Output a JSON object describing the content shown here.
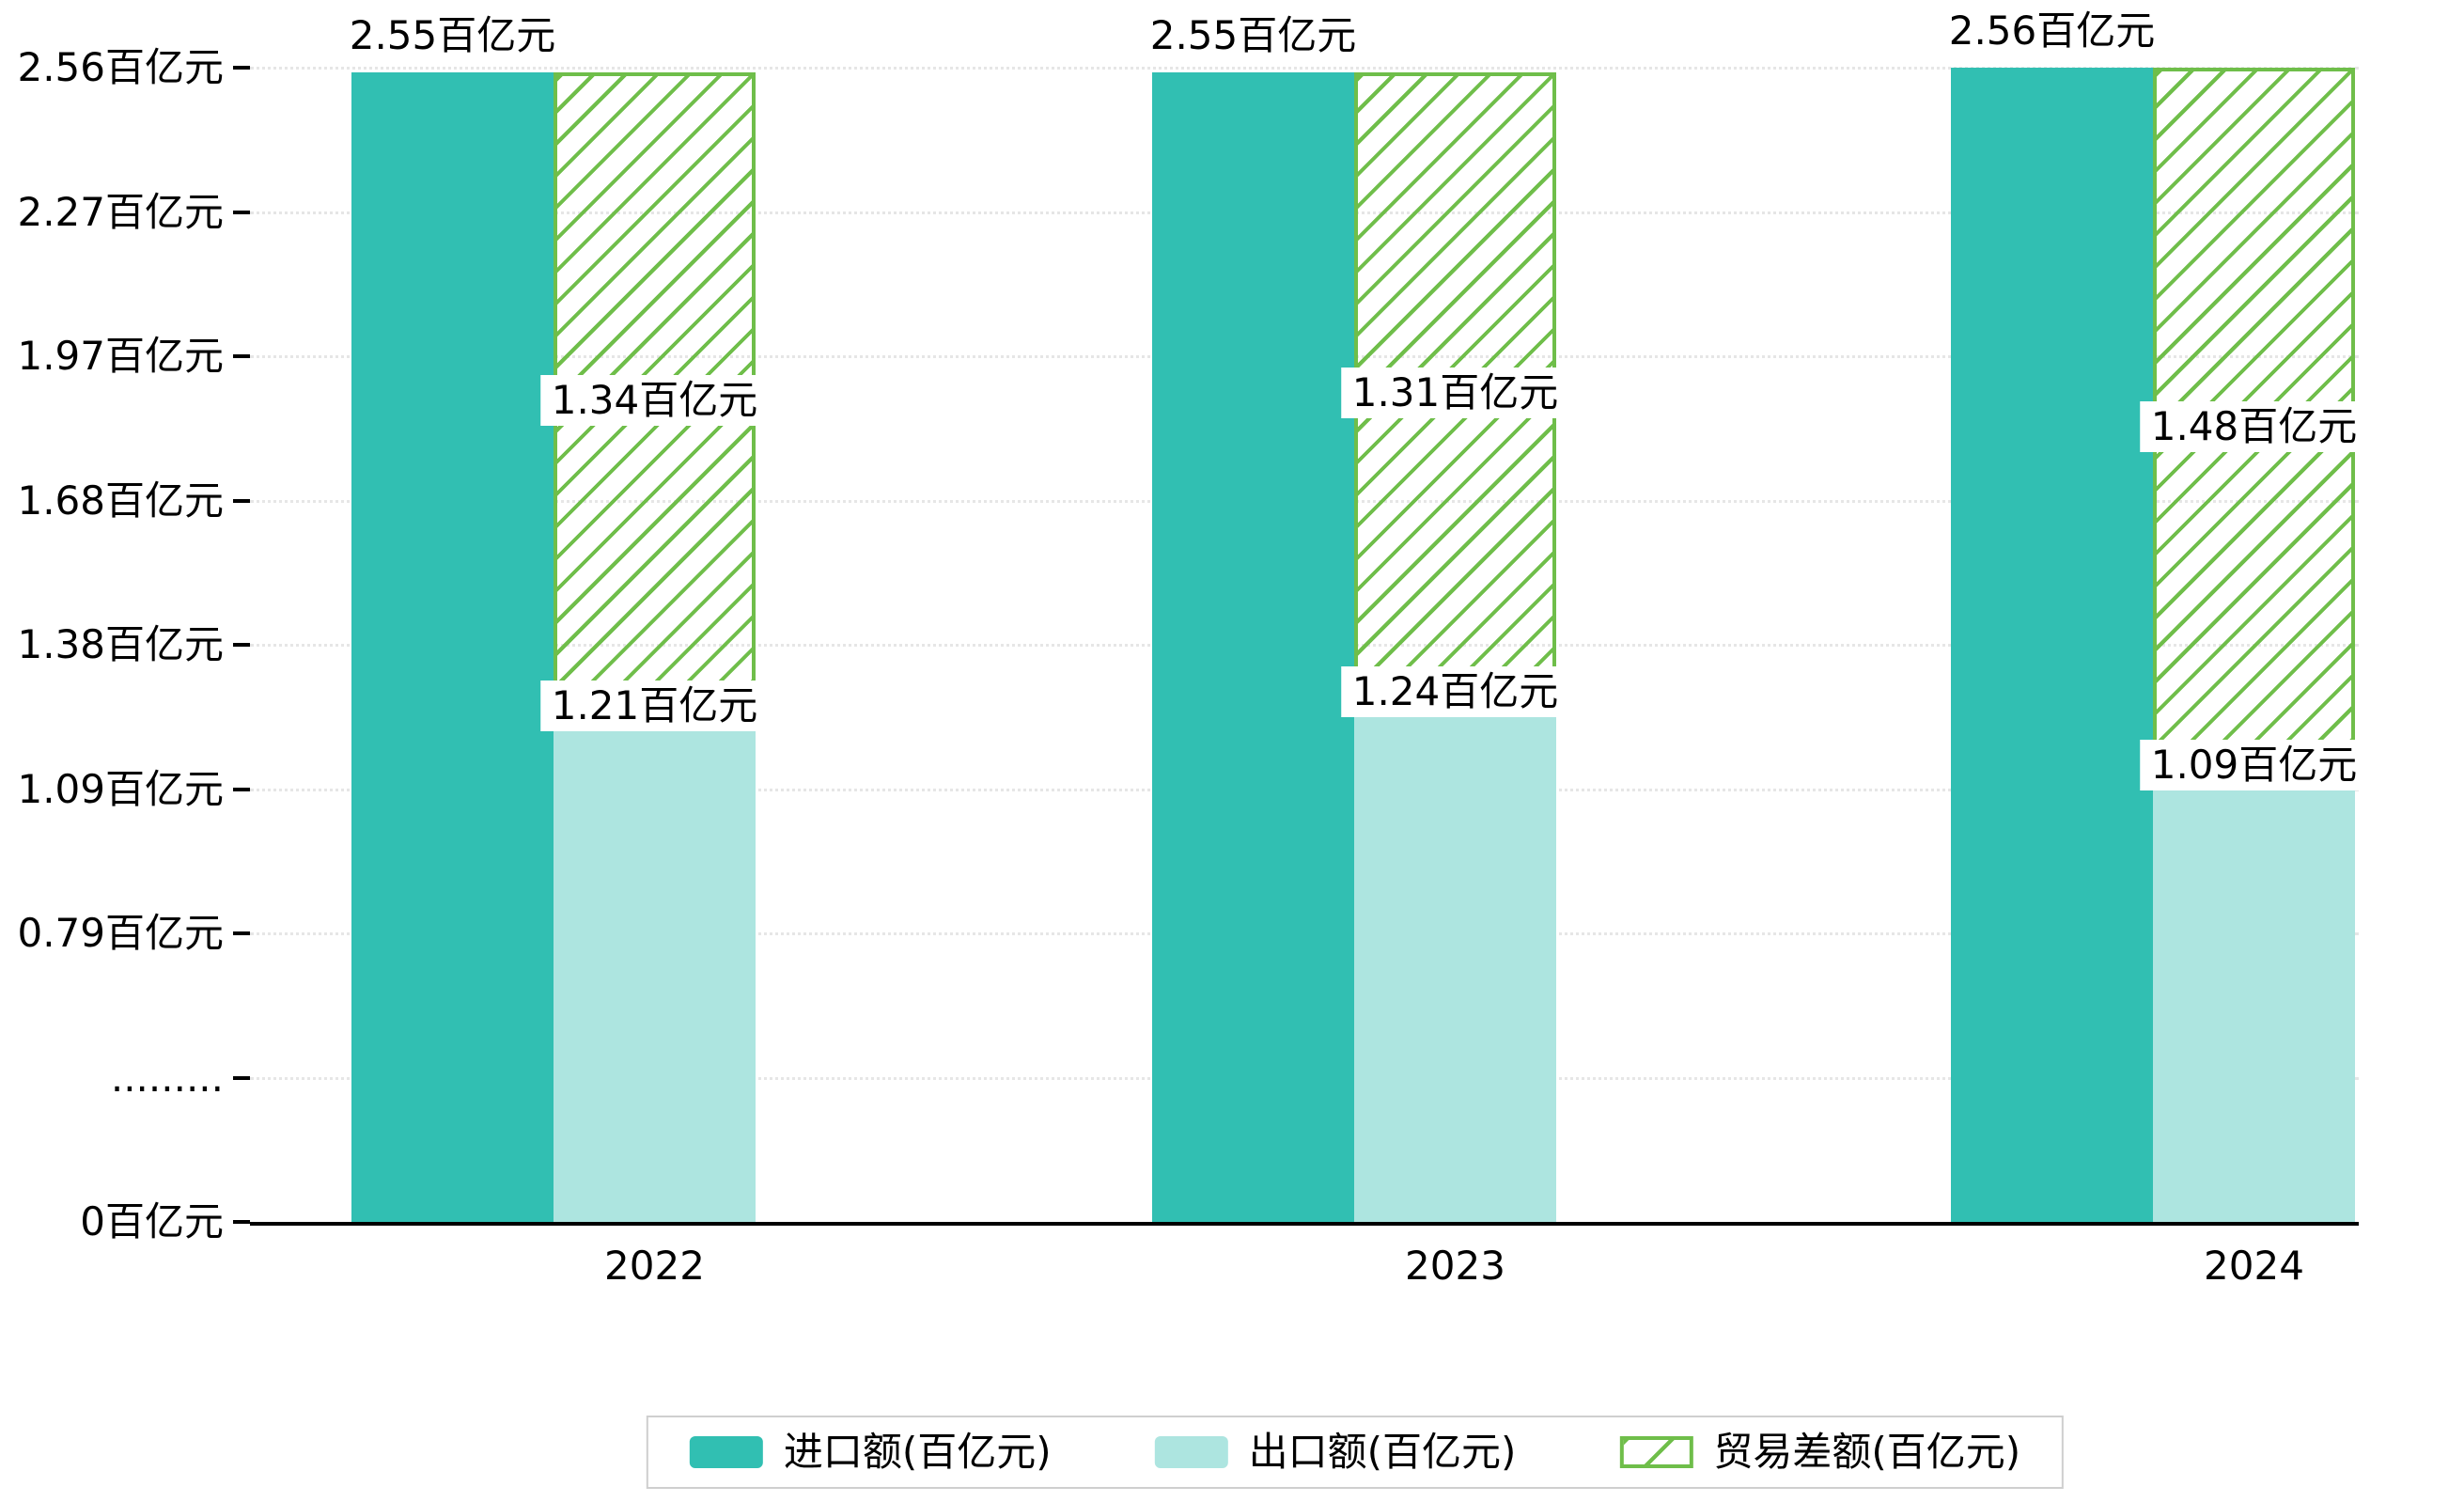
{
  "chart_data": {
    "type": "bar",
    "title": "",
    "unit": "百亿元",
    "categories": [
      "2022",
      "2023",
      "2024"
    ],
    "series": [
      {
        "key": "import",
        "name": "进口额(百亿元)",
        "values": [
          2.55,
          2.55,
          2.56
        ],
        "labels": [
          "2.55百亿元",
          "2.55百亿元",
          "2.56百亿元"
        ],
        "color": "#31bfb2",
        "style": "solid"
      },
      {
        "key": "export",
        "name": "出口额(百亿元)",
        "values": [
          1.21,
          1.24,
          1.09
        ],
        "labels": [
          "1.21百亿元",
          "1.24百亿元",
          "1.09百亿元"
        ],
        "color": "#ade5e0",
        "style": "solid"
      },
      {
        "key": "diff",
        "name": "贸易差额(百亿元)",
        "values": [
          1.34,
          1.31,
          1.48
        ],
        "labels": [
          "1.34百亿元",
          "1.31百亿元",
          "1.48百亿元"
        ],
        "color": "#6fbe4a",
        "style": "hatched"
      }
    ],
    "y_axis": {
      "tick_labels": [
        "2.56百亿元",
        "2.27百亿元",
        "1.97百亿元",
        "1.68百亿元",
        "1.38百亿元",
        "1.09百亿元",
        "0.79百亿元",
        ".........",
        "0百亿元"
      ],
      "tick_values": [
        2.56,
        2.27,
        1.97,
        1.68,
        1.38,
        1.09,
        0.79,
        null,
        0
      ],
      "value_per_tick_step": 0.295,
      "axis_break": true
    },
    "legend": {
      "position": "bottom",
      "entries": [
        "进口额(百亿元)",
        "出口额(百亿元)",
        "贸易差额(百亿元)"
      ]
    },
    "grid": true
  },
  "colors": {
    "import": "#31bfb2",
    "export": "#ade5e0",
    "diff_green": "#6fbe4a",
    "axis": "#000000",
    "grid": "#e6e6e6",
    "legend_border": "#cfcfcf",
    "background": "#ffffff",
    "text": "#000000"
  }
}
